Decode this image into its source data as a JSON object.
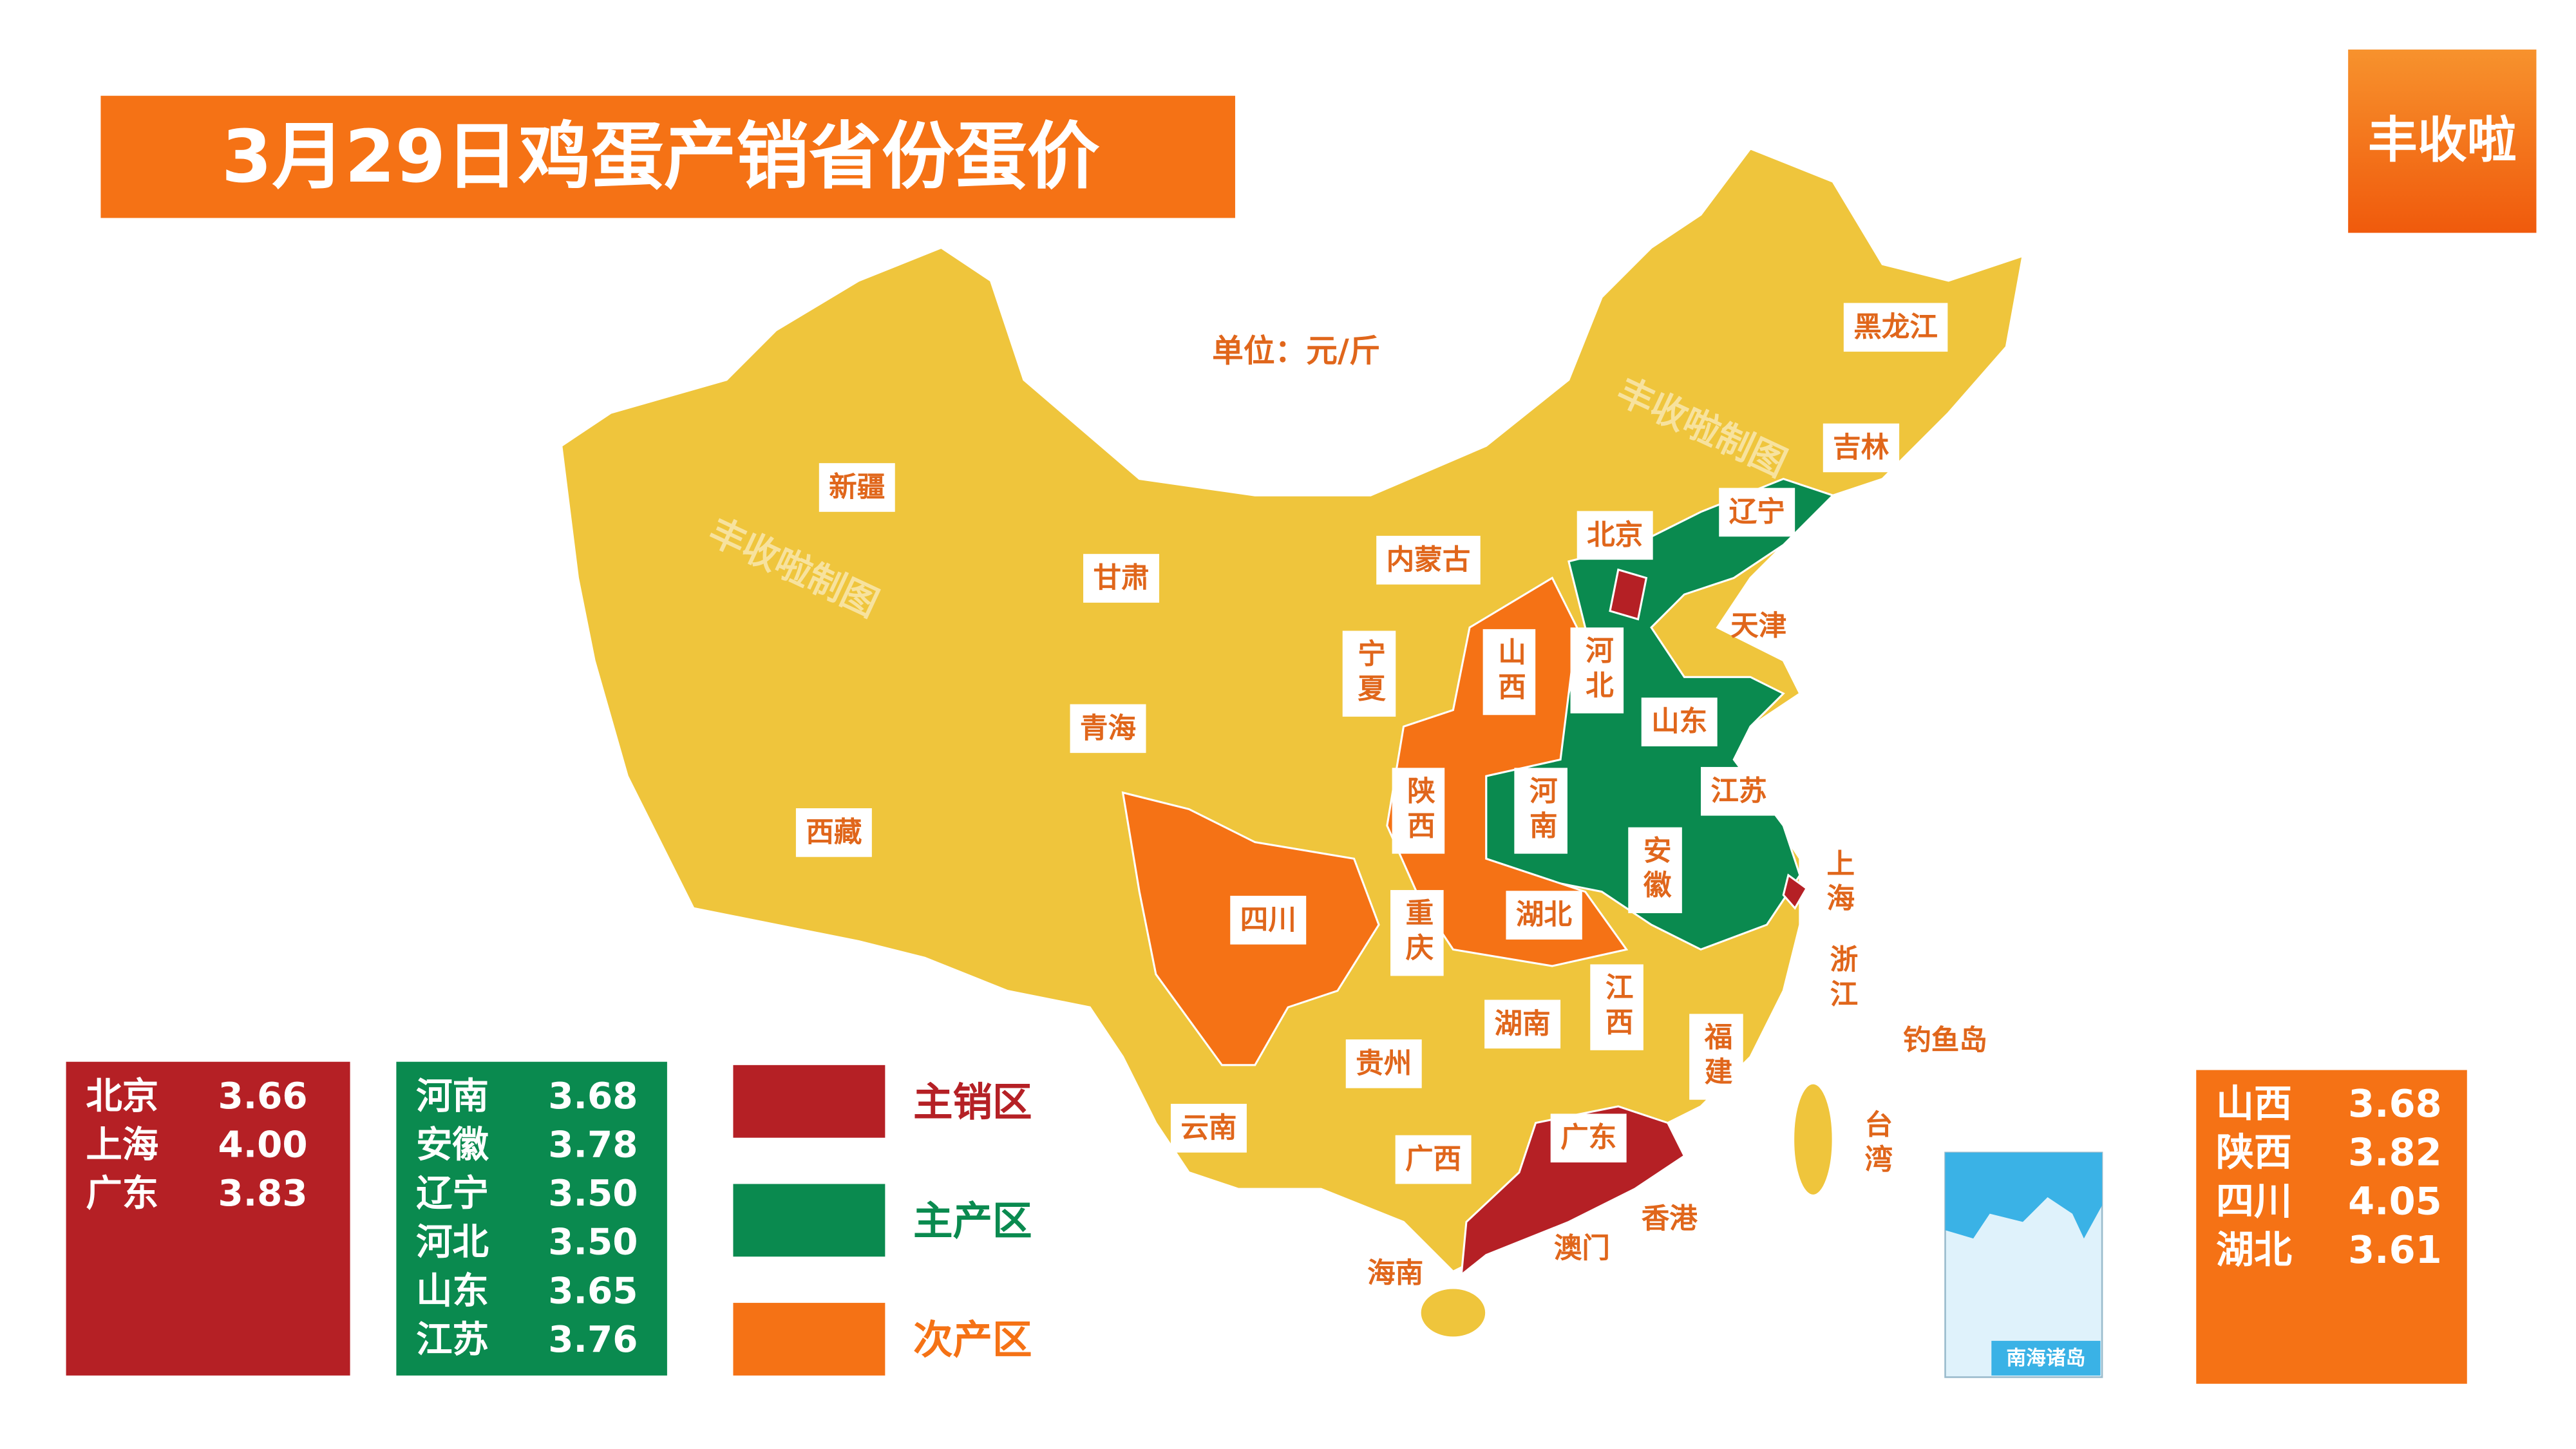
{
  "title": "3月29日鸡蛋产销省份蛋价",
  "brand": "丰收啦",
  "unit": "单位：元/斤",
  "watermark": "丰收啦制图",
  "legend": [
    {
      "label": "主销区",
      "color": "#b52025"
    },
    {
      "label": "主产区",
      "color": "#0a8a4f"
    },
    {
      "label": "次产区",
      "color": "#f57215"
    }
  ],
  "tables": [
    {
      "color": "#b52025",
      "rows": [
        [
          "北京",
          "3.66"
        ],
        [
          "上海",
          "4.00"
        ],
        [
          "广东",
          "3.83"
        ]
      ]
    },
    {
      "color": "#0a8a4f",
      "rows": [
        [
          "河南",
          "3.68"
        ],
        [
          "安徽",
          "3.78"
        ],
        [
          "辽宁",
          "3.50"
        ],
        [
          "河北",
          "3.50"
        ],
        [
          "山东",
          "3.65"
        ],
        [
          "江苏",
          "3.76"
        ]
      ]
    },
    {
      "color": "#f57215",
      "rows": [
        [
          "山西",
          "3.68"
        ],
        [
          "陕西",
          "3.82"
        ],
        [
          "四川",
          "4.05"
        ],
        [
          "湖北",
          "3.61"
        ]
      ]
    }
  ],
  "map_labels": [
    "新疆",
    "西藏",
    "青海",
    "甘肃",
    "内蒙古",
    "宁夏",
    "山西",
    "河北",
    "北京",
    "天津",
    "辽宁",
    "吉林",
    "黑龙江",
    "山东",
    "河南",
    "陕西",
    "江苏",
    "安徽",
    "上海",
    "浙江",
    "四川",
    "重庆",
    "湖北",
    "湖南",
    "江西",
    "福建",
    "贵州",
    "云南",
    "广西",
    "广东",
    "香港",
    "澳门",
    "海南",
    "台湾",
    "钓鱼岛"
  ],
  "inset_label": "南海诸岛"
}
